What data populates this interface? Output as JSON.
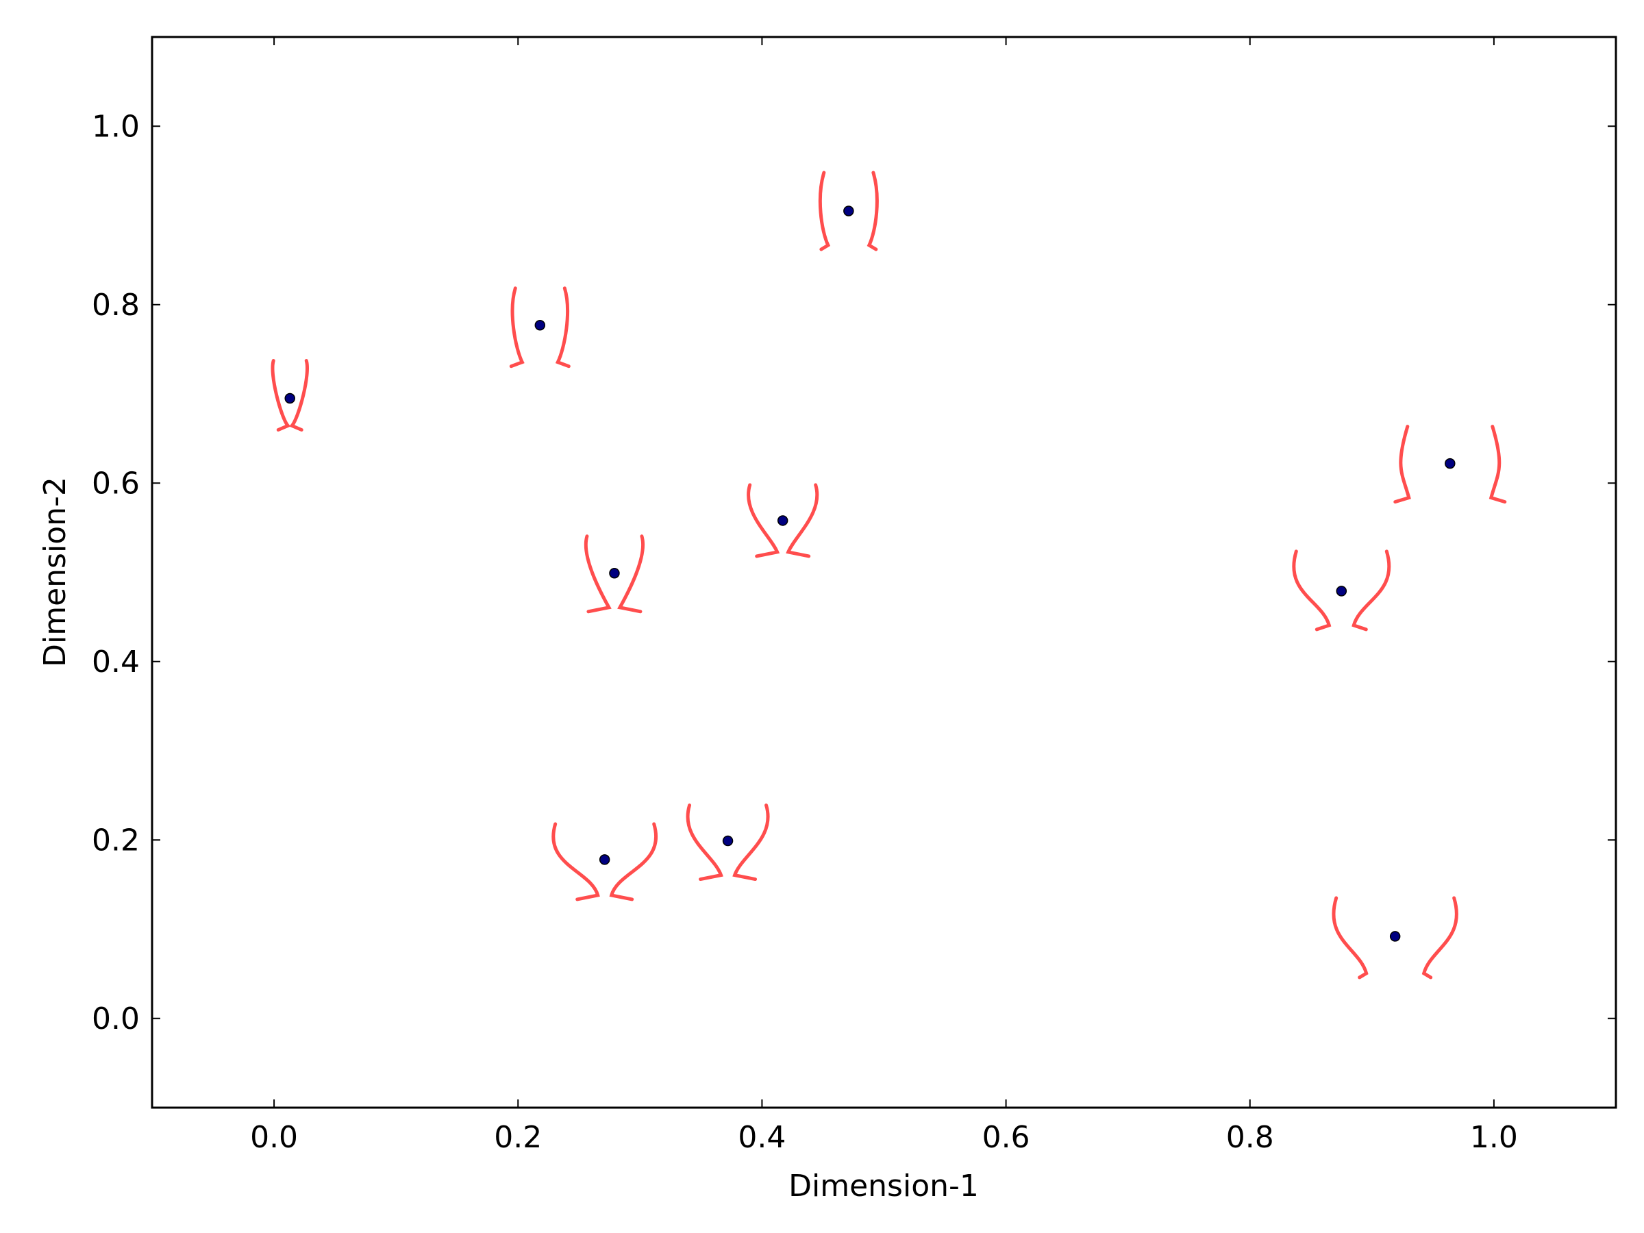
{
  "chart_data": {
    "type": "scatter",
    "title": "",
    "xlabel": "Dimension-1",
    "ylabel": "Dimension-2",
    "xlim": [
      -0.1,
      1.1
    ],
    "ylim": [
      -0.1,
      1.1
    ],
    "x_ticks": [
      "0.0",
      "0.2",
      "0.4",
      "0.6",
      "0.8",
      "1.0"
    ],
    "y_ticks": [
      "0.0",
      "0.2",
      "0.4",
      "0.6",
      "0.8",
      "1.0"
    ],
    "grid": false,
    "legend": "none",
    "point_color": "#000080",
    "glyph_color": "#ff4d4d",
    "series": [
      {
        "points": [
          {
            "x": 0.013,
            "y": 0.695
          },
          {
            "x": 0.218,
            "y": 0.777
          },
          {
            "x": 0.271,
            "y": 0.178
          },
          {
            "x": 0.279,
            "y": 0.499
          },
          {
            "x": 0.372,
            "y": 0.199
          },
          {
            "x": 0.417,
            "y": 0.558
          },
          {
            "x": 0.471,
            "y": 0.905
          },
          {
            "x": 0.875,
            "y": 0.479
          },
          {
            "x": 0.919,
            "y": 0.092
          },
          {
            "x": 0.964,
            "y": 0.622
          }
        ]
      }
    ]
  }
}
